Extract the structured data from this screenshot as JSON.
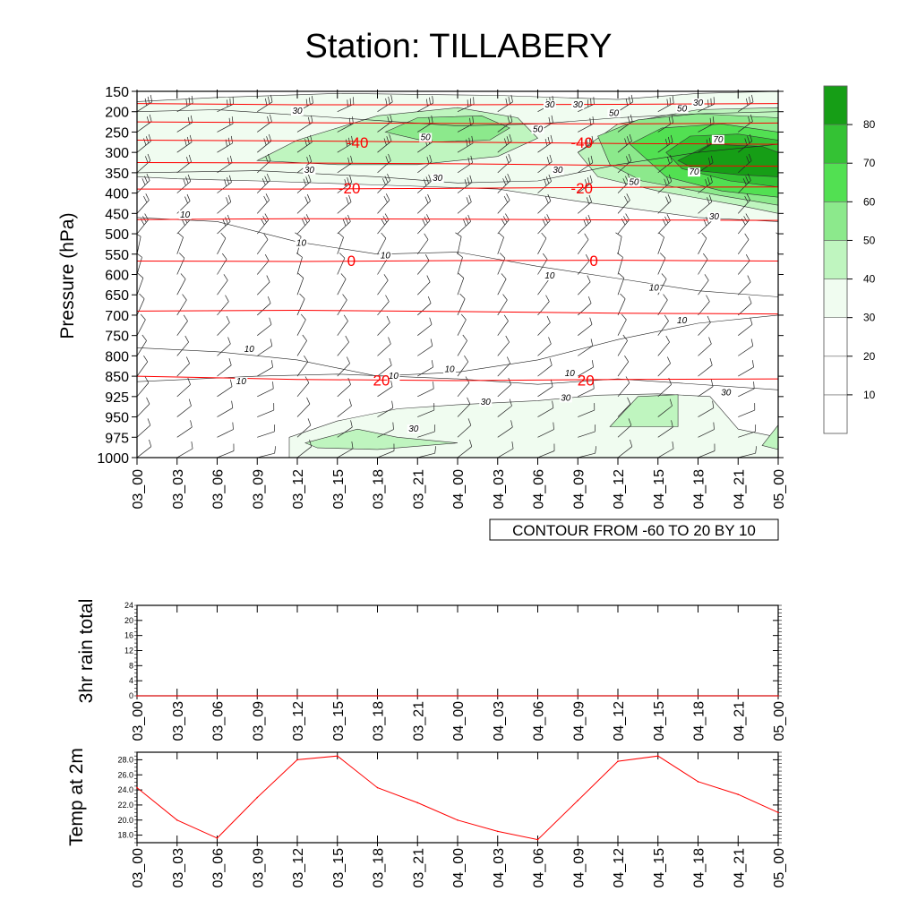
{
  "title": "Station: TILLABERY",
  "colors": {
    "temp_contour": "#ff0000",
    "rh_fill": [
      "#ffffff",
      "#ffffff",
      "#ffffff",
      "#f0fcf0",
      "#bff5bf",
      "#8ce98c",
      "#52e052",
      "#34c234",
      "#169e16"
    ],
    "line": "#ff0000"
  },
  "time_labels": [
    "03_00",
    "03_03",
    "03_06",
    "03_09",
    "03_12",
    "03_15",
    "03_18",
    "03_21",
    "04_00",
    "04_03",
    "04_06",
    "04_09",
    "04_12",
    "04_15",
    "04_18",
    "04_21",
    "05_00"
  ],
  "chart_data": [
    {
      "type": "heatmap",
      "name": "cross-section",
      "ylabel": "Pressure (hPa)",
      "y_levels": [
        150,
        200,
        250,
        300,
        350,
        400,
        450,
        500,
        550,
        600,
        650,
        700,
        750,
        800,
        850,
        925,
        950,
        975,
        1000
      ],
      "note": "CONTOUR FROM -60 TO 20 BY 10",
      "colorbar_ticks": [
        "10",
        "20",
        "30",
        "40",
        "50",
        "60",
        "70",
        "80"
      ],
      "temp_contours": [
        {
          "value": "-40",
          "label_times": [
            2.0,
            7.6
          ]
        },
        {
          "value": "-20",
          "label_times": [
            1.8,
            7.6
          ]
        },
        {
          "value": "0",
          "label_times": [
            1.85,
            7.9
          ]
        },
        {
          "value": "20",
          "label_times": [
            2.6,
            7.7
          ]
        }
      ],
      "rh_labels": [
        "10",
        "30",
        "50",
        "70"
      ]
    },
    {
      "type": "line",
      "name": "rain",
      "ylabel": "3hr rain total",
      "yticks": [
        "0",
        "4",
        "8",
        "12",
        "16",
        "20",
        "24"
      ],
      "ylim": [
        0,
        24
      ],
      "values": [
        0,
        0,
        0,
        0,
        0,
        0,
        0,
        0,
        0,
        0,
        0,
        0,
        0,
        0,
        0,
        0,
        0
      ]
    },
    {
      "type": "line",
      "name": "temperature",
      "ylabel": "Temp at 2m",
      "yticks": [
        "18.0",
        "20.0",
        "22.0",
        "24.0",
        "26.0",
        "28.0"
      ],
      "ylim": [
        17.0,
        29.0
      ],
      "values": [
        24.3,
        20.0,
        17.6,
        23.0,
        28.0,
        28.5,
        24.3,
        22.3,
        20.0,
        18.5,
        17.4,
        22.6,
        27.8,
        28.5,
        25.1,
        23.4,
        21.0
      ]
    }
  ]
}
